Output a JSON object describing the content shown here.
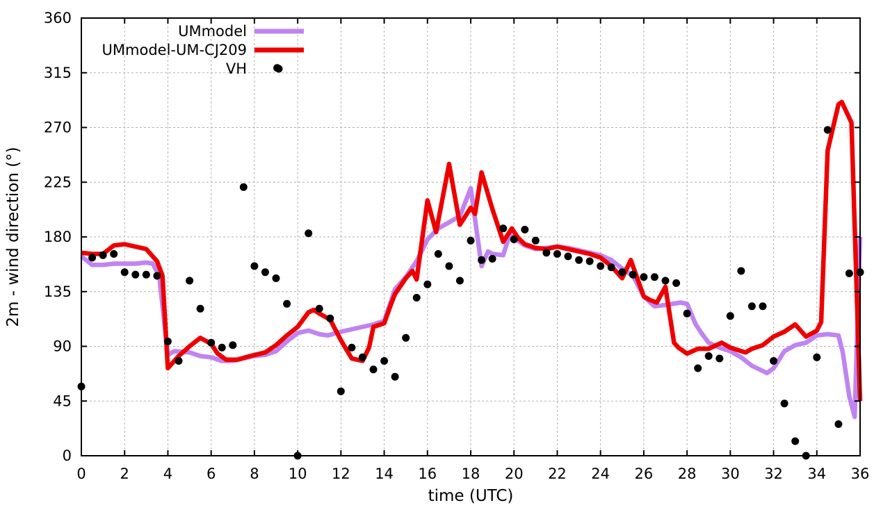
{
  "chart_data": {
    "type": "line",
    "title": "",
    "xlabel": "time (UTC)",
    "ylabel": "2m - wind direction (°)",
    "xlim": [
      0,
      36
    ],
    "ylim": [
      0,
      360
    ],
    "xtick_step": 2,
    "ytick_step": 45,
    "grid": true,
    "grid_color": "#b0b0b0",
    "frame_color": "#000000",
    "legend_position": "top-left-inside",
    "series": [
      {
        "name": "UMmodel",
        "type": "line",
        "color": "#bf84f2",
        "width": 6.5,
        "points": [
          [
            0,
            164
          ],
          [
            0.5,
            157
          ],
          [
            1,
            157
          ],
          [
            1.5,
            158
          ],
          [
            2,
            158
          ],
          [
            2.5,
            158
          ],
          [
            3,
            159
          ],
          [
            3.3,
            158
          ],
          [
            3.6,
            148
          ],
          [
            4,
            83
          ],
          [
            4.3,
            86
          ],
          [
            5,
            85
          ],
          [
            5.5,
            82
          ],
          [
            6,
            81
          ],
          [
            6.5,
            78
          ],
          [
            7,
            78
          ],
          [
            7.5,
            80
          ],
          [
            8,
            82
          ],
          [
            8.5,
            83
          ],
          [
            9,
            86
          ],
          [
            9.5,
            94
          ],
          [
            10,
            101
          ],
          [
            10.5,
            103
          ],
          [
            11,
            100
          ],
          [
            11.4,
            99
          ],
          [
            12,
            102
          ],
          [
            12.5,
            104
          ],
          [
            13,
            106
          ],
          [
            13.5,
            108
          ],
          [
            14,
            111
          ],
          [
            14.5,
            137
          ],
          [
            15,
            147
          ],
          [
            15.5,
            160
          ],
          [
            16,
            178
          ],
          [
            16.5,
            187
          ],
          [
            17,
            192
          ],
          [
            17.5,
            197
          ],
          [
            18,
            220
          ],
          [
            18.5,
            156
          ],
          [
            18.8,
            168
          ],
          [
            19,
            166
          ],
          [
            19.5,
            165
          ],
          [
            19.8,
            182
          ],
          [
            20,
            179
          ],
          [
            20.5,
            173
          ],
          [
            21,
            170
          ],
          [
            21.5,
            171
          ],
          [
            22,
            172
          ],
          [
            22.5,
            171
          ],
          [
            23,
            169
          ],
          [
            23.5,
            167
          ],
          [
            24,
            165
          ],
          [
            24.5,
            161
          ],
          [
            25,
            154
          ],
          [
            25.5,
            148
          ],
          [
            26,
            131
          ],
          [
            26.5,
            123
          ],
          [
            27,
            124
          ],
          [
            27.7,
            126
          ],
          [
            28,
            125
          ],
          [
            28.4,
            108
          ],
          [
            28.7,
            100
          ],
          [
            29,
            93
          ],
          [
            29.5,
            89
          ],
          [
            30,
            86
          ],
          [
            30.5,
            81
          ],
          [
            31,
            74
          ],
          [
            31.7,
            68
          ],
          [
            32,
            72
          ],
          [
            32.5,
            86
          ],
          [
            33,
            91
          ],
          [
            33.5,
            93
          ],
          [
            34,
            99
          ],
          [
            34.5,
            100
          ],
          [
            35,
            99
          ],
          [
            35.2,
            85
          ],
          [
            35.5,
            49
          ],
          [
            35.75,
            32
          ],
          [
            36,
            180
          ]
        ]
      },
      {
        "name": "UMmodel-UM-CJ209",
        "type": "line",
        "color": "#ee0000",
        "width": 6.5,
        "points": [
          [
            0,
            167
          ],
          [
            0.5,
            166
          ],
          [
            1,
            166
          ],
          [
            1.5,
            173
          ],
          [
            2,
            174
          ],
          [
            2.5,
            172
          ],
          [
            3,
            170
          ],
          [
            3.5,
            160
          ],
          [
            3.75,
            148
          ],
          [
            4,
            72
          ],
          [
            4.5,
            82
          ],
          [
            5,
            90
          ],
          [
            5.5,
            97
          ],
          [
            6,
            92
          ],
          [
            6.3,
            84
          ],
          [
            6.7,
            79
          ],
          [
            7.2,
            79
          ],
          [
            7.8,
            82
          ],
          [
            8.5,
            85
          ],
          [
            9,
            91
          ],
          [
            9.5,
            99
          ],
          [
            10,
            106
          ],
          [
            10.5,
            118
          ],
          [
            10.75,
            120
          ],
          [
            11,
            117
          ],
          [
            11.5,
            112
          ],
          [
            12,
            95
          ],
          [
            12.5,
            80
          ],
          [
            13,
            78
          ],
          [
            13.3,
            89
          ],
          [
            13.5,
            106
          ],
          [
            14,
            109
          ],
          [
            14.3,
            124
          ],
          [
            14.5,
            133
          ],
          [
            15,
            146
          ],
          [
            15.3,
            152
          ],
          [
            15.5,
            145
          ],
          [
            16,
            210
          ],
          [
            16.4,
            184
          ],
          [
            17,
            240
          ],
          [
            17.5,
            190
          ],
          [
            18,
            204
          ],
          [
            18.2,
            199
          ],
          [
            18.5,
            233
          ],
          [
            19,
            203
          ],
          [
            19.5,
            176
          ],
          [
            19.9,
            187
          ],
          [
            20.2,
            179
          ],
          [
            20.5,
            174
          ],
          [
            21,
            171
          ],
          [
            21.5,
            170
          ],
          [
            22,
            172
          ],
          [
            22.5,
            170
          ],
          [
            23,
            168
          ],
          [
            23.5,
            166
          ],
          [
            24,
            163
          ],
          [
            24.5,
            156
          ],
          [
            25,
            146
          ],
          [
            25.4,
            161
          ],
          [
            26,
            131
          ],
          [
            26.3,
            128
          ],
          [
            26.6,
            126
          ],
          [
            27,
            139
          ],
          [
            27.4,
            93
          ],
          [
            27.6,
            89
          ],
          [
            28,
            84
          ],
          [
            28.5,
            88
          ],
          [
            29,
            88
          ],
          [
            29.6,
            93
          ],
          [
            30,
            89
          ],
          [
            30.7,
            85
          ],
          [
            31,
            88
          ],
          [
            31.5,
            91
          ],
          [
            32,
            98
          ],
          [
            32.5,
            102
          ],
          [
            33,
            108
          ],
          [
            33.5,
            98
          ],
          [
            34,
            103
          ],
          [
            34.2,
            110
          ],
          [
            34.5,
            251
          ],
          [
            35,
            289
          ],
          [
            35.15,
            291
          ],
          [
            35.6,
            274
          ],
          [
            36,
            45
          ]
        ]
      },
      {
        "name": "VH",
        "type": "scatter",
        "color": "#000000",
        "marker": "dot",
        "radius": 5.5,
        "points": [
          [
            0,
            57
          ],
          [
            0.5,
            163
          ],
          [
            1,
            165
          ],
          [
            1.5,
            166
          ],
          [
            2,
            151
          ],
          [
            2.5,
            149
          ],
          [
            3,
            149
          ],
          [
            3.5,
            148
          ],
          [
            4,
            94
          ],
          [
            4.5,
            78
          ],
          [
            5,
            144
          ],
          [
            5.5,
            121
          ],
          [
            6,
            93
          ],
          [
            6.5,
            89
          ],
          [
            7,
            91
          ],
          [
            7.5,
            221
          ],
          [
            8,
            156
          ],
          [
            8.5,
            151
          ],
          [
            9,
            146
          ],
          [
            9.05,
            319
          ],
          [
            9.5,
            125
          ],
          [
            10,
            0
          ],
          [
            10.5,
            183
          ],
          [
            11,
            121
          ],
          [
            11.5,
            113
          ],
          [
            12,
            53
          ],
          [
            12.5,
            89
          ],
          [
            13,
            81
          ],
          [
            13.5,
            71
          ],
          [
            14,
            78
          ],
          [
            14.5,
            65
          ],
          [
            15,
            97
          ],
          [
            15.5,
            130
          ],
          [
            16,
            141
          ],
          [
            16.5,
            166
          ],
          [
            17,
            156
          ],
          [
            17.5,
            144
          ],
          [
            18,
            177
          ],
          [
            18.5,
            161
          ],
          [
            19,
            162
          ],
          [
            19.5,
            187
          ],
          [
            20,
            178
          ],
          [
            20.5,
            186
          ],
          [
            21,
            177
          ],
          [
            21.5,
            167
          ],
          [
            22,
            166
          ],
          [
            22.5,
            164
          ],
          [
            23,
            161
          ],
          [
            23.5,
            160
          ],
          [
            24,
            156
          ],
          [
            24.5,
            155
          ],
          [
            25,
            151
          ],
          [
            25.5,
            149
          ],
          [
            26,
            147
          ],
          [
            26.5,
            147
          ],
          [
            27,
            144
          ],
          [
            27.5,
            142
          ],
          [
            28,
            117
          ],
          [
            28.5,
            72
          ],
          [
            29,
            82
          ],
          [
            29.5,
            80
          ],
          [
            30,
            115
          ],
          [
            30.5,
            152
          ],
          [
            31,
            123
          ],
          [
            31.5,
            123
          ],
          [
            32,
            78
          ],
          [
            32.5,
            43
          ],
          [
            33,
            12
          ],
          [
            33.5,
            0
          ],
          [
            34,
            81
          ],
          [
            34.5,
            268
          ],
          [
            35,
            26
          ],
          [
            35.5,
            150
          ],
          [
            36,
            151
          ]
        ]
      }
    ]
  }
}
